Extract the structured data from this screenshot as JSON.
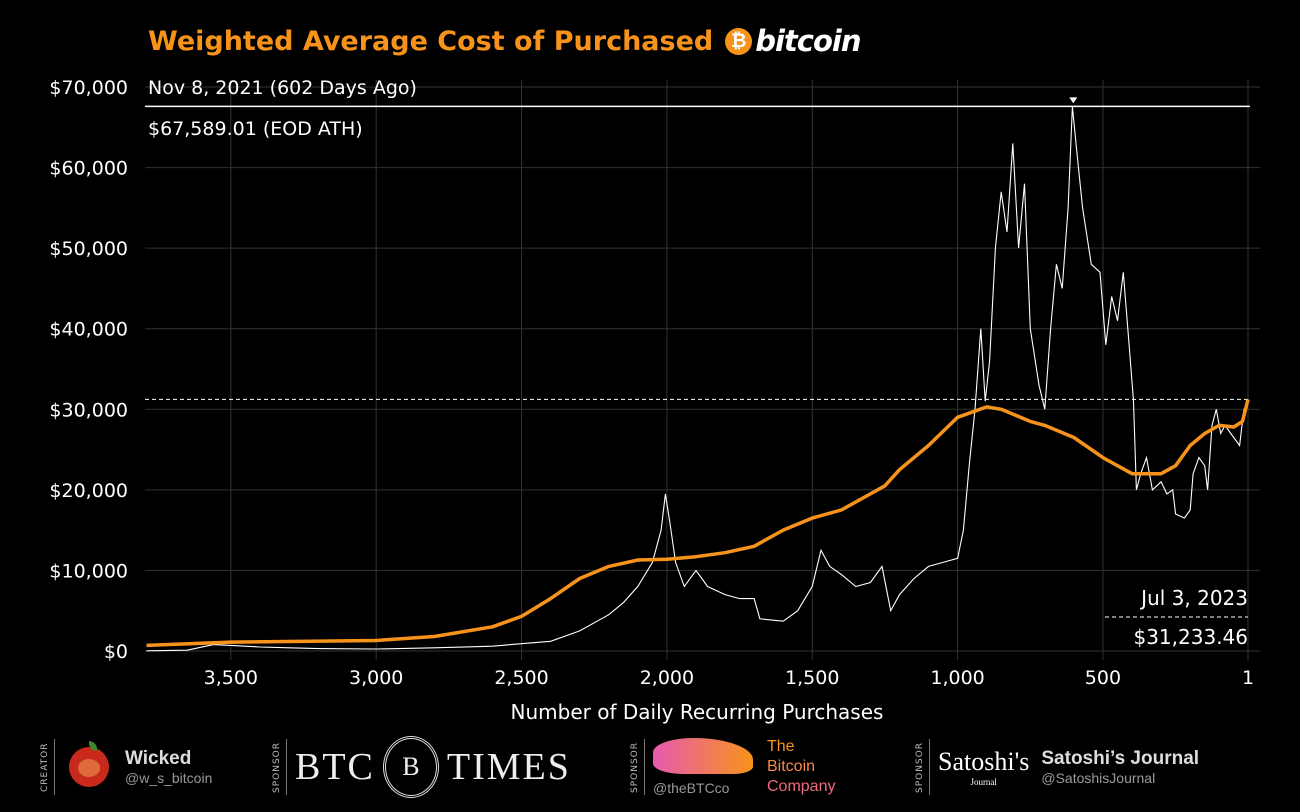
{
  "header": {
    "title": "Weighted Average Cost of Purchased",
    "logo_text": "bitcoin",
    "logo_symbol": "₿"
  },
  "annotations": {
    "ath_date": "Nov 8, 2021 (602 Days Ago)",
    "ath_price": "$67,589.01 (EOD ATH)",
    "current_date": "Jul 3, 2023",
    "current_wac": "$31,233.46"
  },
  "chart_data": {
    "type": "line",
    "title": "Weighted Average Cost of Purchased bitcoin",
    "xlabel": "Number of Daily Recurring Purchases",
    "ylabel": "",
    "x_reversed": true,
    "xlim": [
      3790,
      1
    ],
    "ylim": [
      0,
      70000
    ],
    "x_ticks": [
      3500,
      3000,
      2500,
      2000,
      1500,
      1000,
      500,
      1
    ],
    "x_tick_labels": [
      "3,500",
      "3,000",
      "2,500",
      "2,000",
      "1,500",
      "1,000",
      "500",
      "1"
    ],
    "y_ticks": [
      0,
      10000,
      20000,
      30000,
      40000,
      50000,
      60000,
      70000
    ],
    "y_tick_labels": [
      "$0",
      "$10,000",
      "$20,000",
      "$30,000",
      "$40,000",
      "$50,000",
      "$60,000",
      "$70,000"
    ],
    "grid": true,
    "colors": {
      "price": "#ffffff",
      "wac": "#f7931a",
      "background": "#000000",
      "grid": "#333333"
    },
    "reference_lines": [
      {
        "value": 67589.01,
        "style": "solid"
      },
      {
        "value": 31233.46,
        "style": "dashed"
      }
    ],
    "ath_marker_x": 602,
    "series": [
      {
        "id": "price",
        "x": [
          3790,
          3650,
          3560,
          3500,
          3400,
          3300,
          3200,
          3000,
          2800,
          2600,
          2500,
          2400,
          2300,
          2200,
          2150,
          2100,
          2050,
          2020,
          2005,
          1990,
          1970,
          1940,
          1900,
          1860,
          1800,
          1750,
          1700,
          1680,
          1600,
          1550,
          1500,
          1470,
          1440,
          1400,
          1350,
          1300,
          1260,
          1230,
          1200,
          1150,
          1100,
          1050,
          1000,
          980,
          960,
          940,
          920,
          905,
          890,
          870,
          850,
          830,
          810,
          790,
          770,
          750,
          720,
          700,
          680,
          660,
          640,
          620,
          605,
          590,
          570,
          540,
          510,
          490,
          470,
          450,
          430,
          410,
          395,
          385,
          370,
          350,
          330,
          300,
          280,
          260,
          250,
          220,
          200,
          190,
          170,
          150,
          140,
          125,
          110,
          95,
          80,
          60,
          40,
          30,
          15,
          1
        ],
        "values": [
          20,
          100,
          800,
          700,
          500,
          400,
          300,
          250,
          400,
          600,
          900,
          1200,
          2500,
          4500,
          6000,
          8000,
          11000,
          15000,
          19500,
          16000,
          11000,
          8000,
          10000,
          8000,
          7000,
          6500,
          6500,
          4000,
          3700,
          5000,
          8000,
          12500,
          10500,
          9500,
          8000,
          8500,
          10500,
          5000,
          7000,
          9000,
          10500,
          11000,
          11500,
          15000,
          23000,
          30000,
          40000,
          31000,
          36000,
          50000,
          57000,
          52000,
          63000,
          50000,
          58000,
          40000,
          33000,
          30000,
          40000,
          48000,
          45000,
          55000,
          67589.01,
          62000,
          55000,
          48000,
          47000,
          38000,
          44000,
          41000,
          47000,
          38000,
          31000,
          20000,
          22000,
          24000,
          20000,
          21000,
          19500,
          20000,
          17000,
          16500,
          17500,
          22000,
          24000,
          23000,
          20000,
          28000,
          30000,
          27000,
          28000,
          27000,
          26000,
          25500,
          30000,
          30600
        ]
      },
      {
        "id": "wac",
        "x": [
          3790,
          3500,
          3000,
          2800,
          2600,
          2500,
          2400,
          2300,
          2200,
          2100,
          2000,
          1900,
          1800,
          1700,
          1600,
          1500,
          1400,
          1300,
          1250,
          1200,
          1100,
          1000,
          900,
          850,
          750,
          700,
          600,
          500,
          400,
          300,
          250,
          200,
          150,
          100,
          50,
          20,
          1
        ],
        "values": [
          700,
          1100,
          1300,
          1800,
          3000,
          4300,
          6500,
          9000,
          10500,
          11300,
          11400,
          11700,
          12200,
          13000,
          15000,
          16500,
          17500,
          19500,
          20500,
          22500,
          25500,
          29000,
          30300,
          30000,
          28500,
          28000,
          26500,
          24000,
          22000,
          22000,
          23000,
          25500,
          27000,
          28000,
          27800,
          28500,
          31233.46
        ]
      }
    ]
  },
  "footer": {
    "creator_label": "CREATOR",
    "creator_name": "Wicked",
    "creator_handle": "@w_s_bitcoin",
    "sponsor_label": "SPONSOR",
    "sponsor1_name_left": "BTC",
    "sponsor1_name_right": "TIMES",
    "sponsor1_emblem": "B",
    "sponsor2_handle": "@theBTCco",
    "sponsor2_name": [
      "The",
      "Bitcoin",
      "Company"
    ],
    "sponsor3_logo_text": "Satoshi's",
    "sponsor3_logo_sub": "Journal",
    "sponsor3_name": "Satoshi’s Journal",
    "sponsor3_handle": "@SatoshisJournal"
  }
}
